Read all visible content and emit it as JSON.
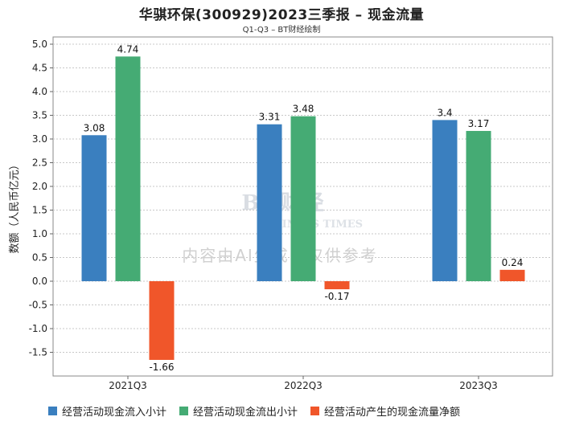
{
  "chart_data": {
    "type": "bar",
    "title": "华骐环保(300929)2023三季报 – 现金流量",
    "subtitle": "Q1-Q3 – BT财经绘制",
    "ylabel": "数额（人民币亿元）",
    "categories": [
      "2021Q3",
      "2022Q3",
      "2023Q3"
    ],
    "ylim": [
      -1.9,
      5.0
    ],
    "yticks": [
      5.0,
      4.5,
      4.0,
      3.5,
      3.0,
      2.5,
      2.0,
      1.5,
      1.0,
      0.5,
      0.0,
      -0.5,
      -1.0,
      -1.5
    ],
    "grid": true,
    "legend_position": "bottom",
    "series": [
      {
        "name": "经营活动现金流入小计",
        "color": "#3a7fbf",
        "values": [
          3.08,
          3.31,
          3.4
        ],
        "labels": [
          "3.08",
          "3.31",
          "3.4"
        ]
      },
      {
        "name": "经营活动现金流出小计",
        "color": "#45ab74",
        "values": [
          4.74,
          3.48,
          3.17
        ],
        "labels": [
          "4.74",
          "3.48",
          "3.17"
        ]
      },
      {
        "name": "经营活动产生的现金流量净额",
        "color": "#f0562a",
        "values": [
          -1.66,
          -0.17,
          0.24
        ],
        "labels": [
          "-1.66",
          "-0.17",
          "0.24"
        ]
      }
    ]
  },
  "watermark": {
    "brand": "BT财经",
    "brand_en": "BUSINESS TIMES",
    "notice": "内容由AI生成，仅供参考"
  }
}
